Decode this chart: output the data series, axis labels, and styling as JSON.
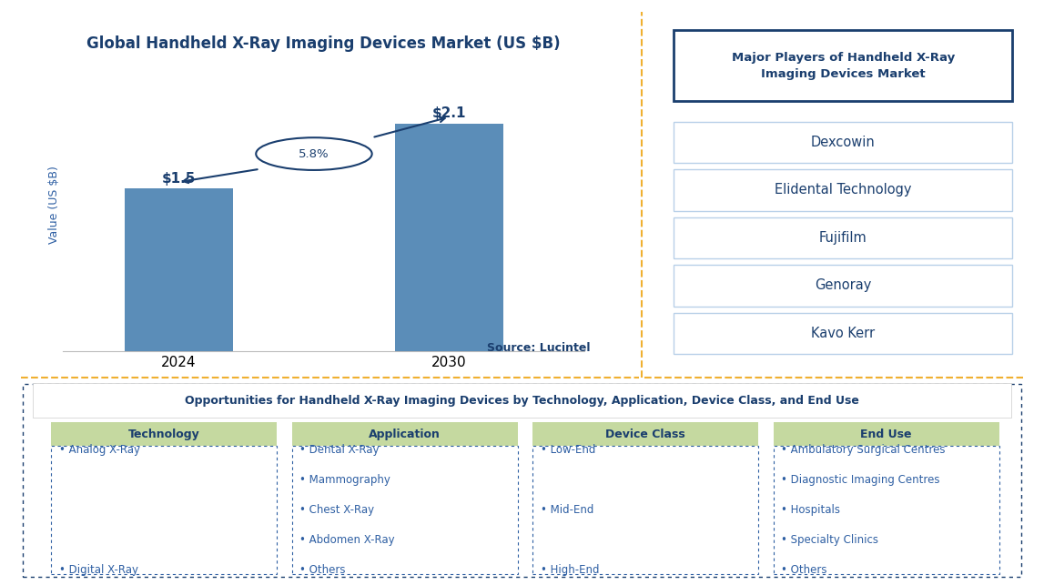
{
  "chart_title": "Global Handheld X-Ray Imaging Devices Market (US $B)",
  "bar_years": [
    "2024",
    "2030"
  ],
  "bar_values": [
    1.5,
    2.1
  ],
  "bar_labels": [
    "$1.5",
    "$2.1"
  ],
  "bar_color": "#5b8db8",
  "ylabel": "Value (US $B)",
  "cagr_text": "5.8%",
  "source_text": "Source: Lucintel",
  "right_panel_title": "Major Players of Handheld X-Ray\nImaging Devices Market",
  "major_players": [
    "Dexcowin",
    "Elidental Technology",
    "Fujifilm",
    "Genoray",
    "Kavo Kerr"
  ],
  "player_text_color": "#1a3e6e",
  "bottom_title": "Opportunities for Handheld X-Ray Imaging Devices by Technology, Application, Device Class, and End Use",
  "columns": [
    "Technology",
    "Application",
    "Device Class",
    "End Use"
  ],
  "column_items": [
    [
      "• Analog X-Ray",
      "• Digital X-Ray"
    ],
    [
      "• Dental X-Ray",
      "• Mammography",
      "• Chest X-Ray",
      "• Abdomen X-Ray",
      "• Others"
    ],
    [
      "• Low-End",
      "• Mid-End",
      "• High-End"
    ],
    [
      "• Ambulatory Surgical Centres",
      "• Diagnostic Imaging Centres",
      "• Hospitals",
      "• Specialty Clinics",
      "• Others"
    ]
  ],
  "col_header_bg": "#c5d9a0",
  "dark_blue": "#1a3e6e",
  "medium_blue": "#2e5fa3",
  "light_blue_border": "#b8d0e8",
  "gold_line": "#f0b030",
  "bg_white": "#ffffff"
}
